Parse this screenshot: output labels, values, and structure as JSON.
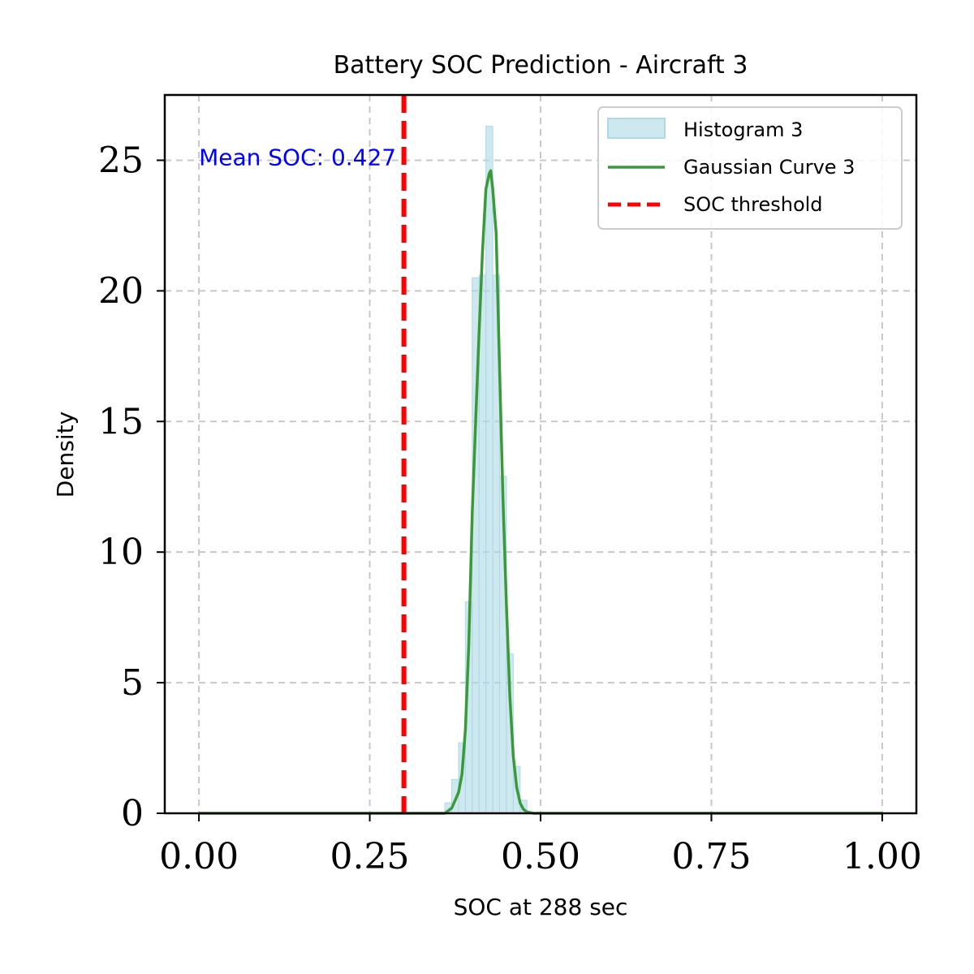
{
  "chart_data": {
    "type": "bar",
    "title": "Battery SOC Prediction - Aircraft 3",
    "xlabel": "SOC at 288 sec",
    "ylabel": "Density",
    "xlim": [
      -0.05,
      1.05
    ],
    "ylim": [
      0,
      27.5
    ],
    "xticks": [
      0.0,
      0.25,
      0.5,
      0.75,
      1.0
    ],
    "xtick_labels": [
      "0.00",
      "0.25",
      "0.50",
      "0.75",
      "1.00"
    ],
    "yticks": [
      0,
      5,
      10,
      15,
      20,
      25
    ],
    "ytick_labels": [
      "0",
      "5",
      "10",
      "15",
      "20",
      "25"
    ],
    "grid": true,
    "legend_position": "top-right",
    "annotation": {
      "text": "Mean SOC: 0.427",
      "x": 0.0,
      "y": 25.0,
      "color": "#0000ff"
    },
    "threshold": {
      "name": "SOC threshold",
      "x": 0.3,
      "color": "#ff0000"
    },
    "histogram": {
      "name": "Histogram 3",
      "color": "#add8e6",
      "bin_width": 0.01,
      "bin_starts": [
        0.36,
        0.37,
        0.38,
        0.39,
        0.4,
        0.41,
        0.42,
        0.43,
        0.44,
        0.45,
        0.46,
        0.47
      ],
      "values": [
        0.4,
        1.3,
        2.7,
        8.1,
        20.5,
        20.6,
        26.3,
        20.6,
        12.9,
        6.1,
        1.8,
        0.5
      ]
    },
    "gaussian": {
      "name": "Gaussian Curve 3",
      "color": "#3a9a3a",
      "x": [
        0.0,
        0.36,
        0.37,
        0.375,
        0.38,
        0.385,
        0.39,
        0.395,
        0.4,
        0.405,
        0.41,
        0.415,
        0.42,
        0.425,
        0.427,
        0.43,
        0.435,
        0.44,
        0.445,
        0.45,
        0.455,
        0.46,
        0.465,
        0.47,
        0.475,
        0.48,
        0.49,
        1.0
      ],
      "y": [
        0.0,
        0.0,
        0.2,
        0.5,
        0.8,
        1.5,
        3.2,
        6.5,
        11.5,
        15.0,
        18.4,
        21.5,
        23.9,
        24.5,
        24.6,
        23.9,
        22.2,
        17.0,
        12.0,
        8.0,
        4.5,
        2.2,
        1.0,
        0.4,
        0.15,
        0.05,
        0.0,
        0.0
      ]
    }
  }
}
